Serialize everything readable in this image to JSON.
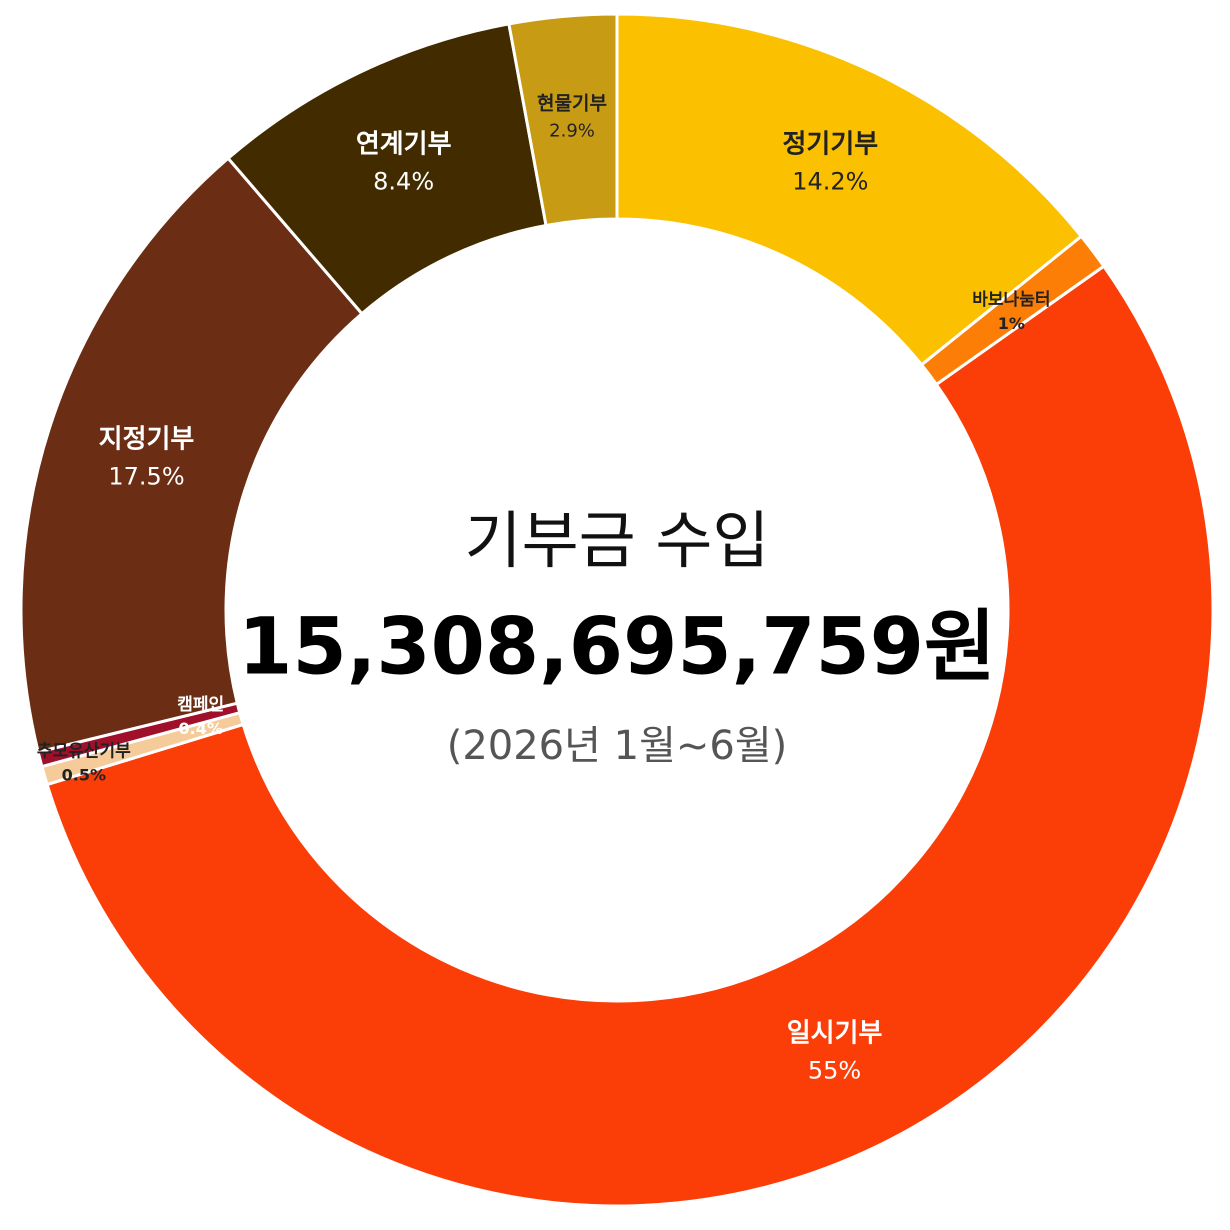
{
  "chart_data": {
    "type": "donut",
    "title": "기부금 수입",
    "total": "15,308,695,759원",
    "subtitle": "(2026년 1월~6월)",
    "categories": [
      "정기기부",
      "바보나눔터",
      "일시기부",
      "추모유산기부",
      "캠페인",
      "지정기부",
      "연계기부",
      "현물기부"
    ],
    "values": [
      14.2,
      1,
      55,
      0.5,
      0.4,
      17.5,
      8.4,
      2.9
    ],
    "value_labels": [
      "14.2%",
      "1%",
      "55%",
      "0.5%",
      "0.4%",
      "17.5%",
      "8.4%",
      "2.9%"
    ],
    "colors": [
      "#fbc100",
      "#fd7e06",
      "#fb3d08",
      "#f5cb9a",
      "#a0102a",
      "#6b2d14",
      "#432b00",
      "#c79c14"
    ]
  }
}
